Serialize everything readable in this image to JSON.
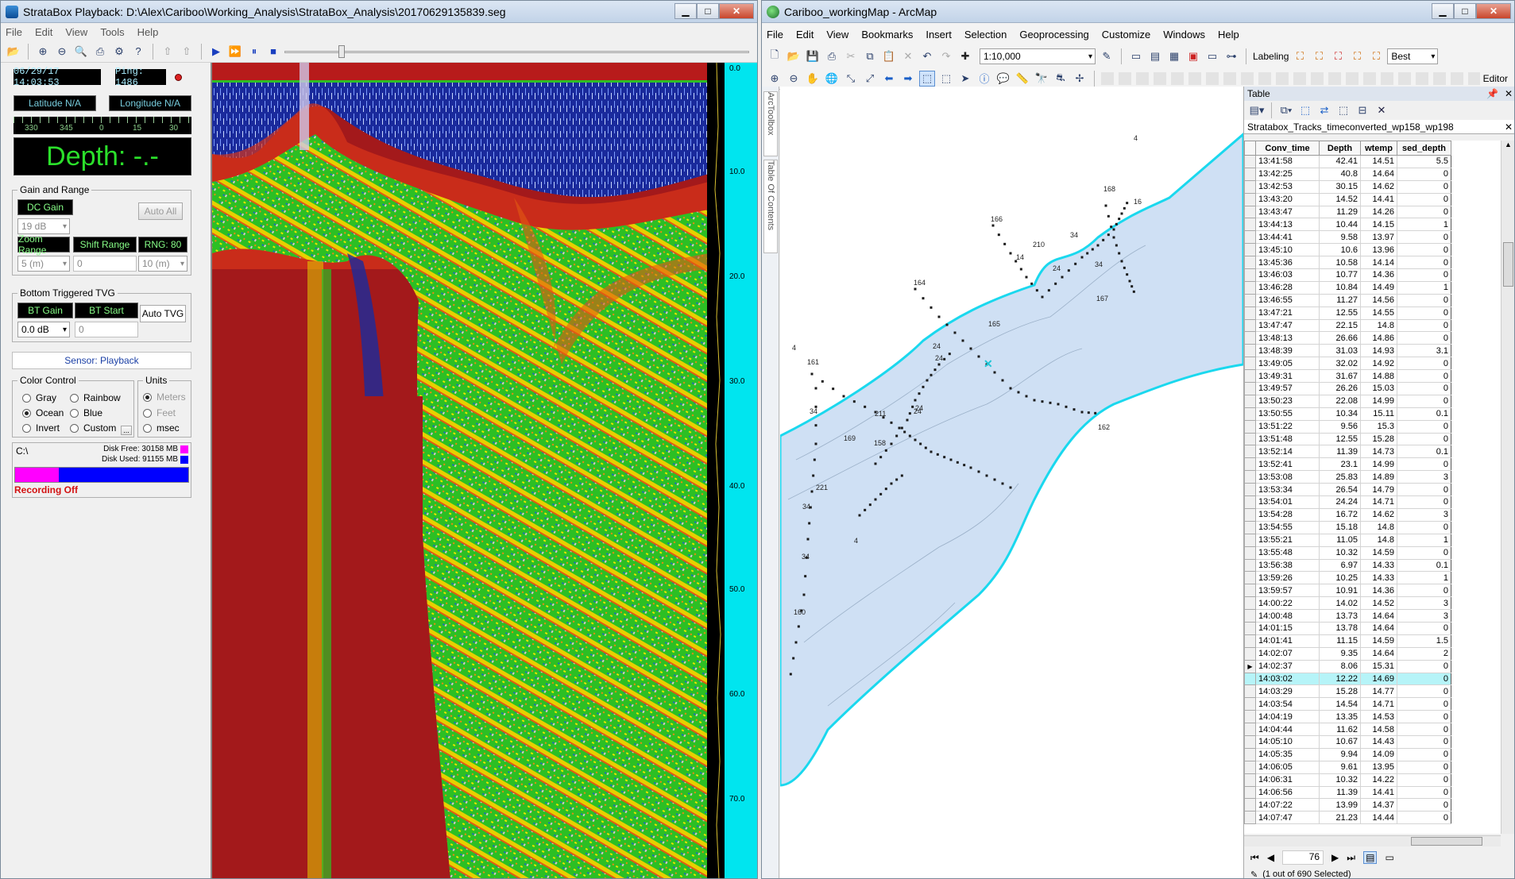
{
  "stratabox": {
    "title": "StrataBox Playback: D:\\Alex\\Cariboo\\Working_Analysis\\StrataBox_Analysis\\20170629135839.seg",
    "menu": [
      "File",
      "Edit",
      "View",
      "Tools",
      "Help"
    ],
    "datetime": "06/29/17 14:03:53",
    "ping": "Ping: 1486",
    "latitude": "Latitude N/A",
    "longitude": "Longitude N/A",
    "compass_ticks": [
      "330",
      "345",
      "0",
      "15",
      "30"
    ],
    "depth": "Depth: -.-",
    "gain_range": {
      "title": "Gain and Range",
      "dc_gain": "DC Gain",
      "auto_all": "Auto All",
      "dc_gain_value": "19 dB",
      "zoom_range": "Zoom Range",
      "shift_range": "Shift Range",
      "rng": "RNG: 80",
      "zoom_value": "5 (m)",
      "shift_value": "0",
      "rng_value": "10 (m)"
    },
    "tvg": {
      "title": "Bottom Triggered TVG",
      "bt_gain": "BT Gain",
      "bt_start": "BT Start",
      "auto_tvg": "Auto TVG",
      "bt_gain_value": "0.0 dB",
      "bt_start_value": "0"
    },
    "sensor": "Sensor: Playback",
    "color_control": {
      "title": "Color Control",
      "options": [
        "Gray",
        "Rainbow",
        "Ocean",
        "Blue"
      ],
      "selected": "Ocean",
      "invert": "Invert",
      "custom": "Custom",
      "ellipsis": "..."
    },
    "units": {
      "title": "Units",
      "meters": "Meters",
      "feet": "Feet",
      "msec": "msec"
    },
    "disk": {
      "drive": "C:\\",
      "free": "Disk Free: 30158 MB",
      "used": "Disk Used: 91155 MB",
      "free_fraction": 0.25,
      "free_color": "#ff00ff",
      "used_color": "#0000ff"
    },
    "recording": "Recording Off",
    "depth_scale": [
      "0.0",
      "10.0",
      "20.0",
      "30.0",
      "40.0",
      "50.0",
      "60.0",
      "70.0"
    ],
    "colors": {
      "scale_bg": "#00e5ef",
      "echo_water": "#1a2a9c",
      "echo_red": "#a3191b"
    }
  },
  "arcmap": {
    "title": "Cariboo_workingMap - ArcMap",
    "menu": [
      "File",
      "Edit",
      "View",
      "Bookmarks",
      "Insert",
      "Selection",
      "Geoprocessing",
      "Customize",
      "Windows",
      "Help"
    ],
    "scale": "1:10,000",
    "labeling": "Labeling",
    "best": "Best",
    "editor": "Editor",
    "side_tabs": [
      "ArcToolbox",
      "Table Of Contents"
    ],
    "map_labels": [
      "168",
      "166",
      "210",
      "34",
      "24",
      "34",
      "14",
      "164",
      "167",
      "165",
      "24",
      "24",
      "161",
      "24",
      "34",
      "211",
      "24",
      "162",
      "169",
      "158",
      "221",
      "34",
      "34",
      "160",
      "4",
      "4",
      "4",
      "16"
    ],
    "colors": {
      "lake_fill": "#cfe0f4",
      "shore": "#1ad8ee",
      "track": "#1b1b1b"
    }
  },
  "table": {
    "panel_title": "Table",
    "layer_tab": "Stratabox_Tracks_timeconverted_wp158_wp198",
    "columns": [
      "Conv_time",
      "Depth",
      "wtemp",
      "sed_depth"
    ],
    "rows": [
      [
        "13:41:58",
        "42.41",
        "14.51",
        "5.5"
      ],
      [
        "13:42:25",
        "40.8",
        "14.64",
        "0"
      ],
      [
        "13:42:53",
        "30.15",
        "14.62",
        "0"
      ],
      [
        "13:43:20",
        "14.52",
        "14.41",
        "0"
      ],
      [
        "13:43:47",
        "11.29",
        "14.26",
        "0"
      ],
      [
        "13:44:13",
        "10.44",
        "14.15",
        "1"
      ],
      [
        "13:44:41",
        "9.58",
        "13.97",
        "0"
      ],
      [
        "13:45:10",
        "10.6",
        "13.96",
        "0"
      ],
      [
        "13:45:36",
        "10.58",
        "14.14",
        "0"
      ],
      [
        "13:46:03",
        "10.77",
        "14.36",
        "0"
      ],
      [
        "13:46:28",
        "10.84",
        "14.49",
        "1"
      ],
      [
        "13:46:55",
        "11.27",
        "14.56",
        "0"
      ],
      [
        "13:47:21",
        "12.55",
        "14.55",
        "0"
      ],
      [
        "13:47:47",
        "22.15",
        "14.8",
        "0"
      ],
      [
        "13:48:13",
        "26.66",
        "14.86",
        "0"
      ],
      [
        "13:48:39",
        "31.03",
        "14.93",
        "3.1"
      ],
      [
        "13:49:05",
        "32.02",
        "14.92",
        "0"
      ],
      [
        "13:49:31",
        "31.67",
        "14.88",
        "0"
      ],
      [
        "13:49:57",
        "26.26",
        "15.03",
        "0"
      ],
      [
        "13:50:23",
        "22.08",
        "14.99",
        "0"
      ],
      [
        "13:50:55",
        "10.34",
        "15.11",
        "0.1"
      ],
      [
        "13:51:22",
        "9.56",
        "15.3",
        "0"
      ],
      [
        "13:51:48",
        "12.55",
        "15.28",
        "0"
      ],
      [
        "13:52:14",
        "11.39",
        "14.73",
        "0.1"
      ],
      [
        "13:52:41",
        "23.1",
        "14.99",
        "0"
      ],
      [
        "13:53:08",
        "25.83",
        "14.89",
        "3"
      ],
      [
        "13:53:34",
        "26.54",
        "14.79",
        "0"
      ],
      [
        "13:54:01",
        "24.24",
        "14.71",
        "0"
      ],
      [
        "13:54:28",
        "16.72",
        "14.62",
        "3"
      ],
      [
        "13:54:55",
        "15.18",
        "14.8",
        "0"
      ],
      [
        "13:55:21",
        "11.05",
        "14.8",
        "1"
      ],
      [
        "13:55:48",
        "10.32",
        "14.59",
        "0"
      ],
      [
        "13:56:38",
        "6.97",
        "14.33",
        "0.1"
      ],
      [
        "13:59:26",
        "10.25",
        "14.33",
        "1"
      ],
      [
        "13:59:57",
        "10.91",
        "14.36",
        "0"
      ],
      [
        "14:00:22",
        "14.02",
        "14.52",
        "3"
      ],
      [
        "14:00:48",
        "13.73",
        "14.64",
        "3"
      ],
      [
        "14:01:15",
        "13.78",
        "14.64",
        "0"
      ],
      [
        "14:01:41",
        "11.15",
        "14.59",
        "1.5"
      ],
      [
        "14:02:07",
        "9.35",
        "14.64",
        "2"
      ],
      [
        "14:02:37",
        "8.06",
        "15.31",
        "0"
      ],
      [
        "14:03:02",
        "12.22",
        "14.69",
        "0"
      ],
      [
        "14:03:29",
        "15.28",
        "14.77",
        "0"
      ],
      [
        "14:03:54",
        "14.54",
        "14.71",
        "0"
      ],
      [
        "14:04:19",
        "13.35",
        "14.53",
        "0"
      ],
      [
        "14:04:44",
        "11.62",
        "14.58",
        "0"
      ],
      [
        "14:05:10",
        "10.67",
        "14.43",
        "0"
      ],
      [
        "14:05:35",
        "9.94",
        "14.09",
        "0"
      ],
      [
        "14:06:05",
        "9.61",
        "13.95",
        "0"
      ],
      [
        "14:06:31",
        "10.32",
        "14.22",
        "0"
      ],
      [
        "14:06:56",
        "11.39",
        "14.41",
        "0"
      ],
      [
        "14:07:22",
        "13.99",
        "14.37",
        "0"
      ],
      [
        "14:07:47",
        "21.23",
        "14.44",
        "0"
      ]
    ],
    "current_row_index": 40,
    "highlighted_row_index": 41,
    "record_number": "76",
    "status": "(1 out of 690 Selected)"
  }
}
